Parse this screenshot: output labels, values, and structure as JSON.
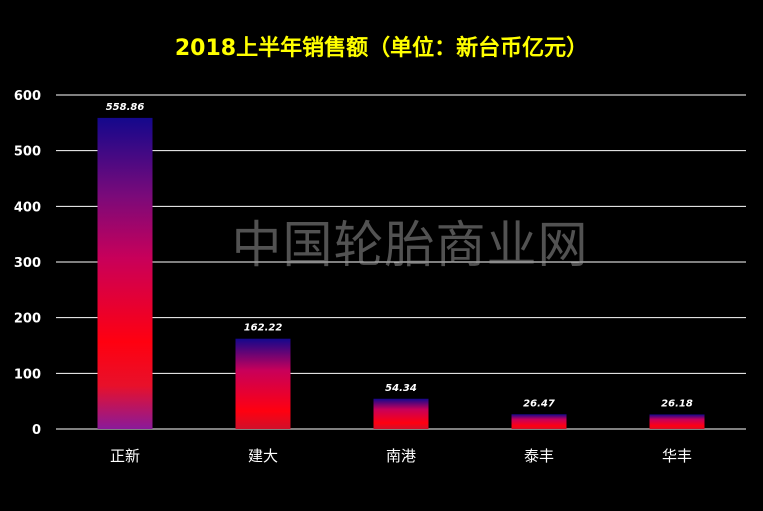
{
  "chart_data": {
    "type": "bar",
    "title": "2018上半年销售额（单位：新台币亿元）",
    "categories": [
      "正新",
      "建大",
      "南港",
      "泰丰",
      "华丰"
    ],
    "values": [
      558.86,
      162.22,
      54.34,
      26.47,
      26.18
    ],
    "data_labels": [
      "558.86",
      "162.22",
      "54.34",
      "26.47",
      "26.18"
    ],
    "yticks": [
      "0",
      "100",
      "200",
      "300",
      "400",
      "500",
      "600"
    ],
    "ylim": [
      0,
      600
    ],
    "xlabel": "",
    "ylabel": "",
    "grid": true,
    "legend": "none",
    "watermark": "中国轮胎商业网",
    "colors": {
      "background": "#000000",
      "title": "#FFFF00",
      "bar_top": "#1A0A8C",
      "bar_mid": "#C8005A",
      "bar_bottom": "#FF0010",
      "grid": "#FFFFFF"
    }
  }
}
